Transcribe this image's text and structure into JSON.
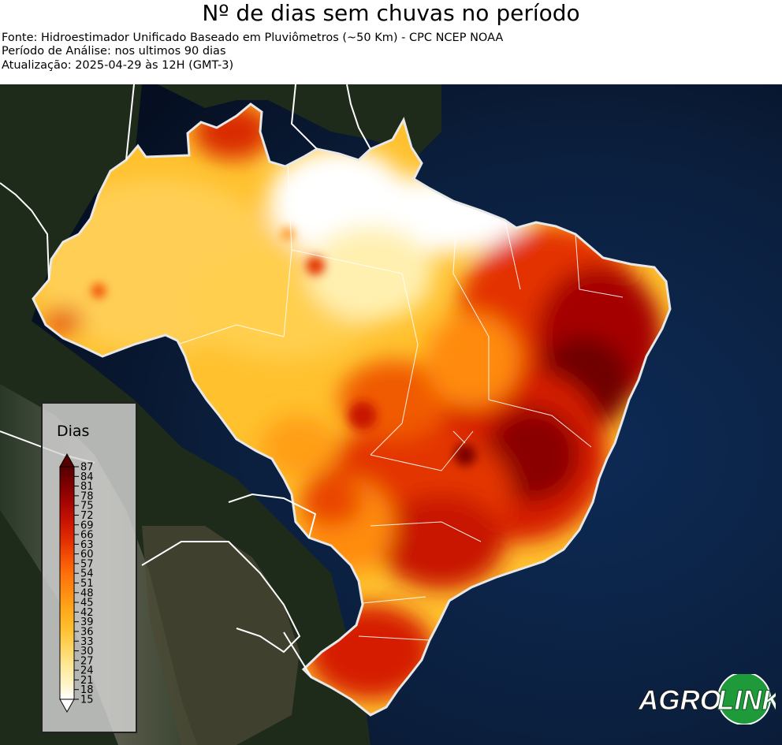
{
  "title": "Nº de dias sem chuvas no período",
  "source": "Fonte: Hidroestimador Unificado Baseado em Pluviômetros (~50 Km) - CPC NCEP NOAA",
  "period": "Período de Análise: nos ultimos 90 dias",
  "updated": "Atualização: 2025-04-29 às 12H (GMT-3)",
  "legend": {
    "title": "Dias",
    "min": 15,
    "max": 87,
    "ticks": [
      "87",
      "84",
      "81",
      "78",
      "75",
      "72",
      "69",
      "66",
      "63",
      "60",
      "57",
      "54",
      "51",
      "48",
      "45",
      "42",
      "39",
      "36",
      "33",
      "30",
      "27",
      "24",
      "21",
      "18",
      "15"
    ],
    "colors": [
      "#ffffff",
      "#fff3c0",
      "#ffe690",
      "#ffd35a",
      "#ffbe2c",
      "#ffa81a",
      "#ff8c10",
      "#ff700a",
      "#f54d05",
      "#e02b02",
      "#c81202",
      "#a50502",
      "#7d0000",
      "#560000"
    ]
  },
  "logo": {
    "text_left": "AGRO",
    "text_right": "LINK",
    "color_green": "#1f9a3a"
  },
  "colors": {
    "ocean": "#0b1f3d",
    "land": "#1d2a19",
    "border": "#ffffff"
  }
}
